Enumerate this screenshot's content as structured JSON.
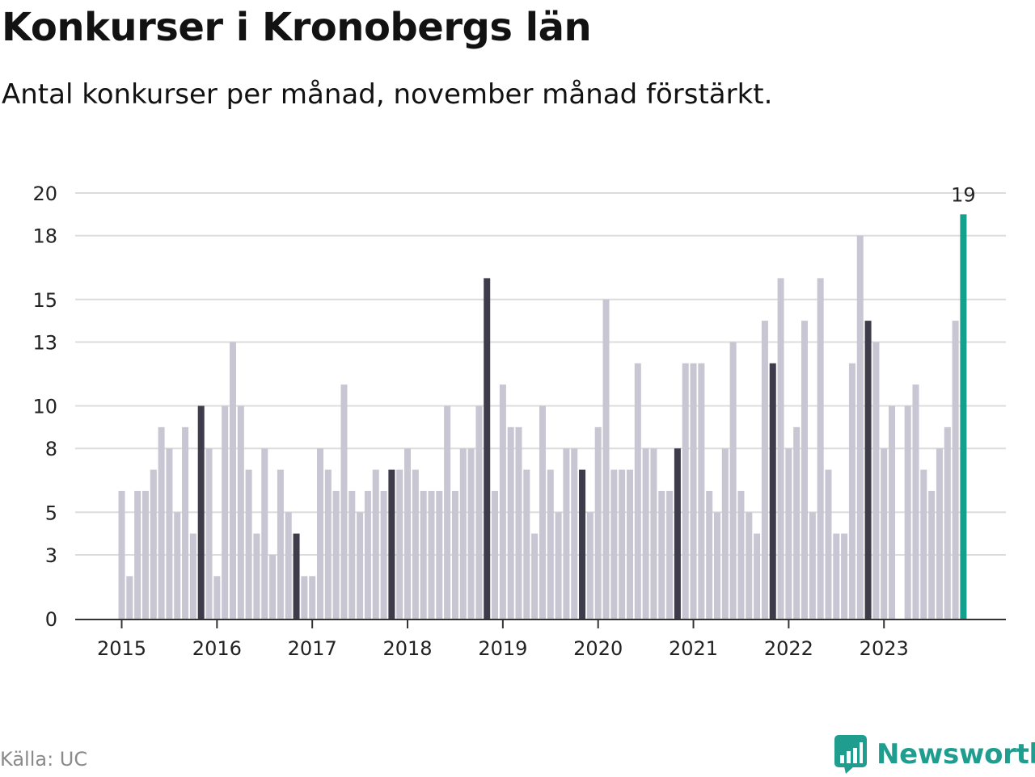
{
  "title": "Konkurser i Kronobergs län",
  "subtitle": "Antal konkurser per månad, november månad förstärkt.",
  "source": "Källa: UC",
  "brand": {
    "name": "Newsworthy",
    "icon": "chart-bubble-logo-icon"
  },
  "colors": {
    "bar": "#c7c6d2",
    "highlight": "#3e3c4a",
    "latest": "#13a08d",
    "grid": "#dcdcdc",
    "axis": "#333333"
  },
  "chart_data": {
    "type": "bar",
    "title": "Konkurser i Kronobergs län",
    "subtitle": "Antal konkurser per månad, november månad förstärkt.",
    "xlabel": "",
    "ylabel": "",
    "ylim": [
      0,
      20
    ],
    "y_ticks": [
      0,
      3,
      5,
      8,
      10,
      13,
      15,
      18,
      20
    ],
    "x_ticks": [
      "2015",
      "2016",
      "2017",
      "2018",
      "2019",
      "2020",
      "2021",
      "2022",
      "2023"
    ],
    "start_month": "2015-01",
    "end_month": "2023-11",
    "grid": true,
    "legend": "none",
    "highlight_month": "november",
    "series": [
      {
        "values": [
          6,
          2,
          6,
          6,
          7,
          9,
          8,
          5,
          9,
          4,
          10,
          8,
          2,
          10,
          13,
          10,
          7,
          4,
          8,
          3,
          7,
          5,
          4,
          2,
          2,
          8,
          7,
          6,
          11,
          6,
          5,
          6,
          7,
          6,
          7,
          7,
          8,
          7,
          6,
          6,
          6,
          10,
          6,
          8,
          8,
          10,
          16,
          6,
          11,
          9,
          9,
          7,
          4,
          10,
          7,
          5,
          8,
          8,
          7,
          5,
          9,
          15,
          7,
          7,
          7,
          12,
          8,
          8,
          6,
          6,
          8,
          12,
          12,
          12,
          6,
          5,
          8,
          13,
          6,
          5,
          4,
          14,
          12,
          16,
          8,
          9,
          14,
          5,
          16,
          7,
          4,
          4,
          12,
          18,
          14,
          13,
          8,
          10,
          0,
          10,
          11,
          7,
          6,
          8,
          9,
          14,
          19
        ]
      }
    ],
    "annotations": [
      {
        "month": "2023-11",
        "label": "19"
      }
    ]
  }
}
